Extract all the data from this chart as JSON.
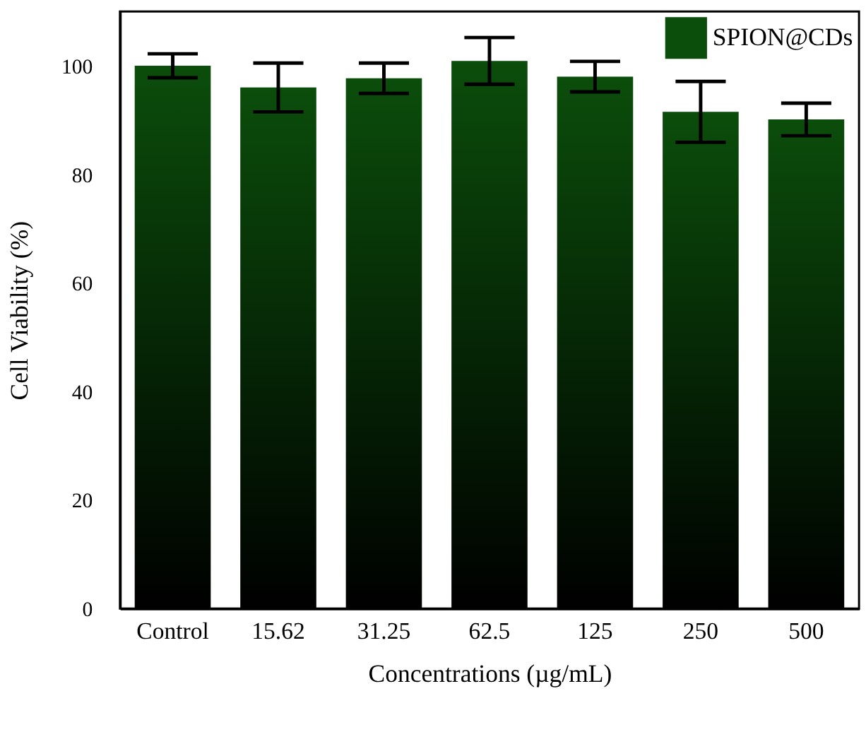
{
  "chart_data": {
    "type": "bar",
    "xlabel": "Concentrations (µg/mL)",
    "ylabel": "Cell Viability (%)",
    "categories": [
      "Control",
      "15.62",
      "31.25",
      "62.5",
      "125",
      "250",
      "500"
    ],
    "series": [
      {
        "name": "SPION@CDs",
        "color": "#0b4d0b",
        "values": [
          100,
          96.0,
          97.7,
          100.9,
          98.0,
          91.5,
          90.1
        ],
        "errors": [
          2.2,
          4.5,
          2.8,
          4.3,
          2.8,
          5.6,
          3.0
        ]
      }
    ],
    "ylim": [
      0,
      110
    ],
    "yticks": [
      0,
      20,
      40,
      60,
      80,
      100
    ],
    "grid": false,
    "legend": "top right"
  }
}
